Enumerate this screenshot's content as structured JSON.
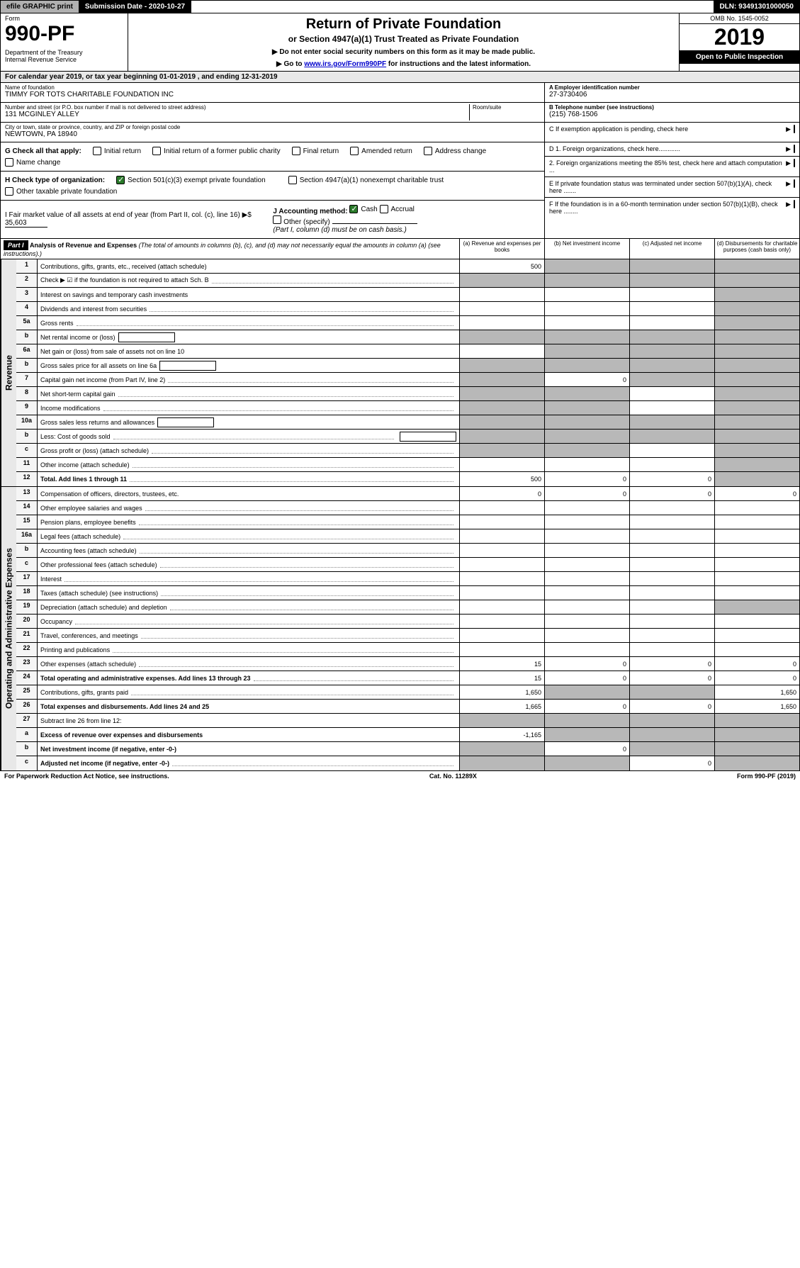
{
  "topbar": {
    "efile": "efile GRAPHIC print",
    "submission": "Submission Date - 2020-10-27",
    "dln": "DLN: 93491301000050"
  },
  "header": {
    "form_label": "Form",
    "form_number": "990-PF",
    "dept": "Department of the Treasury\nInternal Revenue Service",
    "title": "Return of Private Foundation",
    "subtitle": "or Section 4947(a)(1) Trust Treated as Private Foundation",
    "instr1": "▶ Do not enter social security numbers on this form as it may be made public.",
    "instr2_prefix": "▶ Go to ",
    "instr2_link": "www.irs.gov/Form990PF",
    "instr2_suffix": " for instructions and the latest information.",
    "omb": "OMB No. 1545-0052",
    "year": "2019",
    "open": "Open to Public Inspection"
  },
  "calendar": "For calendar year 2019, or tax year beginning 01-01-2019           , and ending 12-31-2019",
  "foundation": {
    "name_label": "Name of foundation",
    "name": "TIMMY FOR TOTS CHARITABLE FOUNDATION INC",
    "addr_label": "Number and street (or P.O. box number if mail is not delivered to street address)",
    "addr": "131 MCGINLEY ALLEY",
    "room_label": "Room/suite",
    "city_label": "City or town, state or province, country, and ZIP or foreign postal code",
    "city": "NEWTOWN, PA  18940",
    "ein_label": "A Employer identification number",
    "ein": "27-3730406",
    "phone_label": "B Telephone number (see instructions)",
    "phone": "(215) 768-1506",
    "c_label": "C If exemption application is pending, check here"
  },
  "checks": {
    "g_label": "G Check all that apply:",
    "g_items": [
      "Initial return",
      "Initial return of a former public charity",
      "Final return",
      "Amended return",
      "Address change",
      "Name change"
    ],
    "h_label": "H Check type of organization:",
    "h_items": [
      "Section 501(c)(3) exempt private foundation",
      "Section 4947(a)(1) nonexempt charitable trust",
      "Other taxable private foundation"
    ],
    "i_label": "I Fair market value of all assets at end of year (from Part II, col. (c), line 16) ▶$",
    "i_value": "35,603",
    "j_label": "J Accounting method:",
    "j_cash": "Cash",
    "j_accrual": "Accrual",
    "j_other": "Other (specify)",
    "j_note": "(Part I, column (d) must be on cash basis.)"
  },
  "right_items": {
    "d1": "D 1. Foreign organizations, check here............",
    "d2": "2. Foreign organizations meeting the 85% test, check here and attach computation ...",
    "e": "E  If private foundation status was terminated under section 507(b)(1)(A), check here .......",
    "f": "F  If the foundation is in a 60-month termination under section 507(b)(1)(B), check here ........"
  },
  "part1": {
    "badge": "Part I",
    "title": "Analysis of Revenue and Expenses",
    "title_note": "(The total of amounts in columns (b), (c), and (d) may not necessarily equal the amounts in column (a) (see instructions).)",
    "col_a": "(a)   Revenue and expenses per books",
    "col_b": "(b)  Net investment income",
    "col_c": "(c)  Adjusted net income",
    "col_d": "(d)  Disbursements for charitable purposes (cash basis only)"
  },
  "side_labels": {
    "revenue": "Revenue",
    "expenses": "Operating and Administrative Expenses"
  },
  "rows": [
    {
      "no": "1",
      "desc": "Contributions, gifts, grants, etc., received (attach schedule)",
      "a": "500",
      "b": "",
      "c": "",
      "d": "",
      "shade_b": true,
      "shade_c": true,
      "shade_d": true
    },
    {
      "no": "2",
      "desc": "Check ▶ ☑ if the foundation is not required to attach Sch. B",
      "dots": true,
      "noamt": true
    },
    {
      "no": "3",
      "desc": "Interest on savings and temporary cash investments",
      "a": "",
      "b": "",
      "c": "",
      "d": "",
      "shade_d": true
    },
    {
      "no": "4",
      "desc": "Dividends and interest from securities",
      "dots": true,
      "a": "",
      "b": "",
      "c": "",
      "d": "",
      "shade_d": true
    },
    {
      "no": "5a",
      "desc": "Gross rents",
      "dots": true,
      "a": "",
      "b": "",
      "c": "",
      "d": "",
      "shade_d": true
    },
    {
      "no": "b",
      "desc": "Net rental income or (loss)",
      "inline": true,
      "shade_a": true,
      "shade_b": true,
      "shade_c": true,
      "shade_d": true
    },
    {
      "no": "6a",
      "desc": "Net gain or (loss) from sale of assets not on line 10",
      "a": "",
      "shade_b": true,
      "shade_c": true,
      "shade_d": true
    },
    {
      "no": "b",
      "desc": "Gross sales price for all assets on line 6a",
      "inline": true,
      "shade_a": true,
      "shade_b": true,
      "shade_c": true,
      "shade_d": true
    },
    {
      "no": "7",
      "desc": "Capital gain net income (from Part IV, line 2)",
      "dots": true,
      "shade_a": true,
      "b": "0",
      "shade_c": true,
      "shade_d": true
    },
    {
      "no": "8",
      "desc": "Net short-term capital gain",
      "dots": true,
      "shade_a": true,
      "shade_b": true,
      "c": "",
      "shade_d": true
    },
    {
      "no": "9",
      "desc": "Income modifications",
      "dots": true,
      "shade_a": true,
      "shade_b": true,
      "c": "",
      "shade_d": true
    },
    {
      "no": "10a",
      "desc": "Gross sales less returns and allowances",
      "inline": true,
      "shade_a": true,
      "shade_b": true,
      "shade_c": true,
      "shade_d": true
    },
    {
      "no": "b",
      "desc": "Less: Cost of goods sold",
      "dots": true,
      "inline": true,
      "shade_a": true,
      "shade_b": true,
      "shade_c": true,
      "shade_d": true
    },
    {
      "no": "c",
      "desc": "Gross profit or (loss) (attach schedule)",
      "dots": true,
      "shade_a": true,
      "shade_b": true,
      "c": "",
      "shade_d": true
    },
    {
      "no": "11",
      "desc": "Other income (attach schedule)",
      "dots": true,
      "a": "",
      "b": "",
      "c": "",
      "shade_d": true
    },
    {
      "no": "12",
      "desc": "Total. Add lines 1 through 11",
      "bold": true,
      "dots": true,
      "a": "500",
      "b": "0",
      "c": "0",
      "shade_d": true
    }
  ],
  "exp_rows": [
    {
      "no": "13",
      "desc": "Compensation of officers, directors, trustees, etc.",
      "a": "0",
      "b": "0",
      "c": "0",
      "d": "0"
    },
    {
      "no": "14",
      "desc": "Other employee salaries and wages",
      "dots": true,
      "a": "",
      "b": "",
      "c": "",
      "d": ""
    },
    {
      "no": "15",
      "desc": "Pension plans, employee benefits",
      "dots": true,
      "a": "",
      "b": "",
      "c": "",
      "d": ""
    },
    {
      "no": "16a",
      "desc": "Legal fees (attach schedule)",
      "dots": true,
      "a": "",
      "b": "",
      "c": "",
      "d": ""
    },
    {
      "no": "b",
      "desc": "Accounting fees (attach schedule)",
      "dots": true,
      "a": "",
      "b": "",
      "c": "",
      "d": ""
    },
    {
      "no": "c",
      "desc": "Other professional fees (attach schedule)",
      "dots": true,
      "a": "",
      "b": "",
      "c": "",
      "d": ""
    },
    {
      "no": "17",
      "desc": "Interest",
      "dots": true,
      "a": "",
      "b": "",
      "c": "",
      "d": ""
    },
    {
      "no": "18",
      "desc": "Taxes (attach schedule) (see instructions)",
      "dots": true,
      "a": "",
      "b": "",
      "c": "",
      "d": ""
    },
    {
      "no": "19",
      "desc": "Depreciation (attach schedule) and depletion",
      "dots": true,
      "a": "",
      "b": "",
      "c": "",
      "shade_d": true
    },
    {
      "no": "20",
      "desc": "Occupancy",
      "dots": true,
      "a": "",
      "b": "",
      "c": "",
      "d": ""
    },
    {
      "no": "21",
      "desc": "Travel, conferences, and meetings",
      "dots": true,
      "a": "",
      "b": "",
      "c": "",
      "d": ""
    },
    {
      "no": "22",
      "desc": "Printing and publications",
      "dots": true,
      "a": "",
      "b": "",
      "c": "",
      "d": ""
    },
    {
      "no": "23",
      "desc": "Other expenses (attach schedule)",
      "dots": true,
      "a": "15",
      "b": "0",
      "c": "0",
      "d": "0"
    },
    {
      "no": "24",
      "desc": "Total operating and administrative expenses. Add lines 13 through 23",
      "bold": true,
      "dots": true,
      "a": "15",
      "b": "0",
      "c": "0",
      "d": "0"
    },
    {
      "no": "25",
      "desc": "Contributions, gifts, grants paid",
      "dots": true,
      "a": "1,650",
      "shade_b": true,
      "shade_c": true,
      "d": "1,650"
    },
    {
      "no": "26",
      "desc": "Total expenses and disbursements. Add lines 24 and 25",
      "bold": true,
      "a": "1,665",
      "b": "0",
      "c": "0",
      "d": "1,650"
    },
    {
      "no": "27",
      "desc": "Subtract line 26 from line 12:",
      "shade_a": true,
      "shade_b": true,
      "shade_c": true,
      "shade_d": true
    },
    {
      "no": "a",
      "desc": "Excess of revenue over expenses and disbursements",
      "bold": true,
      "a": "-1,165",
      "shade_b": true,
      "shade_c": true,
      "shade_d": true
    },
    {
      "no": "b",
      "desc": "Net investment income (if negative, enter -0-)",
      "bold": true,
      "shade_a": true,
      "b": "0",
      "shade_c": true,
      "shade_d": true
    },
    {
      "no": "c",
      "desc": "Adjusted net income (if negative, enter -0-)",
      "bold": true,
      "dots": true,
      "shade_a": true,
      "shade_b": true,
      "c": "0",
      "shade_d": true
    }
  ],
  "footer": {
    "left": "For Paperwork Reduction Act Notice, see instructions.",
    "mid": "Cat. No. 11289X",
    "right": "Form 990-PF (2019)"
  }
}
